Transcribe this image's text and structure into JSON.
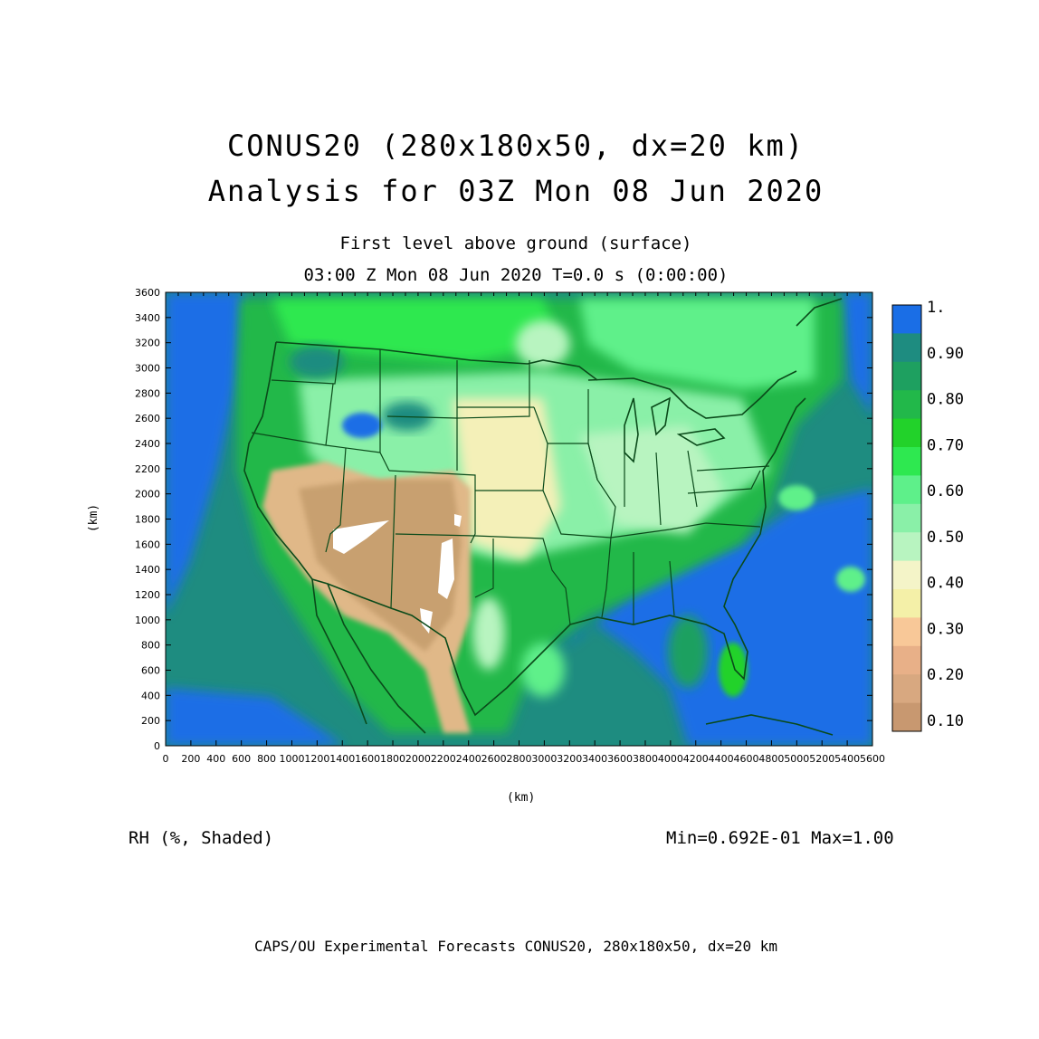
{
  "title": {
    "line1": "CONUS20 (280x180x50, dx=20 km)",
    "line2": "Analysis for 03Z Mon 08 Jun 2020"
  },
  "subtitle": {
    "line1": "First level above ground (surface)",
    "line2": "03:00 Z Mon 08 Jun 2020    T=0.0 s (0:00:00)"
  },
  "axes": {
    "x_label": "(km)",
    "y_label": "(km)",
    "x_ticks": [
      "0",
      "200",
      "400",
      "600",
      "800",
      "1000",
      "1200",
      "1400",
      "1600",
      "1800",
      "2000",
      "2200",
      "2400",
      "2600",
      "2800",
      "3000",
      "3200",
      "3400",
      "3600",
      "3800",
      "4000",
      "4200",
      "4400",
      "4600",
      "4800",
      "5000",
      "5200",
      "5400",
      "5600"
    ],
    "y_ticks": [
      "0",
      "200",
      "400",
      "600",
      "800",
      "1000",
      "1200",
      "1400",
      "1600",
      "1800",
      "2000",
      "2200",
      "2400",
      "2600",
      "2800",
      "3000",
      "3200",
      "3400",
      "3600"
    ],
    "x_range": [
      0,
      5600
    ],
    "y_range": [
      0,
      3600
    ]
  },
  "colorbar": {
    "labels": [
      "1.",
      "0.90",
      "0.80",
      "0.70",
      "0.60",
      "0.50",
      "0.40",
      "0.30",
      "0.20",
      "0.10"
    ],
    "colors": [
      "#1a6ee6",
      "#1e8c80",
      "#1ea060",
      "#22b84a",
      "#22d22a",
      "#2ee850",
      "#5ef08a",
      "#8af0a8",
      "#b8f4c0",
      "#f4f4c8",
      "#f4f0a8",
      "#f8c898",
      "#e8b088",
      "#d8a880",
      "#c89870"
    ]
  },
  "variable_label": "RH (%, Shaded)",
  "min_max": "Min=0.692E-01 Max=1.00",
  "footer": "CAPS/OU Experimental Forecasts  CONUS20, 280x180x50, dx=20 km",
  "map_colors": {
    "ocean": "#1a6ee6",
    "ocean_teal": "#1e8c80",
    "humid_green": "#22c84a",
    "mid_green": "#5ee88a",
    "light_green": "#b8f4c0",
    "pale_yellow": "#f4f0b8",
    "dry_tan": "#c8a070",
    "dry_light": "#e0b888",
    "very_dry": "#ffffff",
    "borders": "#0a4a1a"
  }
}
